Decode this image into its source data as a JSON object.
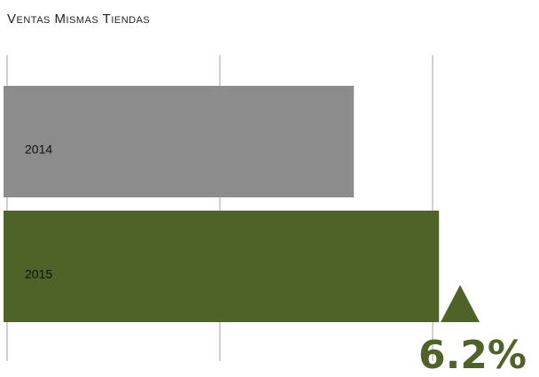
{
  "chart_data": {
    "type": "barh",
    "title": "Ventas Mismas Tiendas",
    "categories": [
      "2014",
      "2015"
    ],
    "values": [
      1.63,
      2.03
    ],
    "colors": [
      "#8c8c8c",
      "#4f6228"
    ],
    "xlim": [
      0,
      2.5
    ],
    "xticks": [
      0,
      1,
      2
    ],
    "grid": true,
    "annotation": "6.2%"
  }
}
